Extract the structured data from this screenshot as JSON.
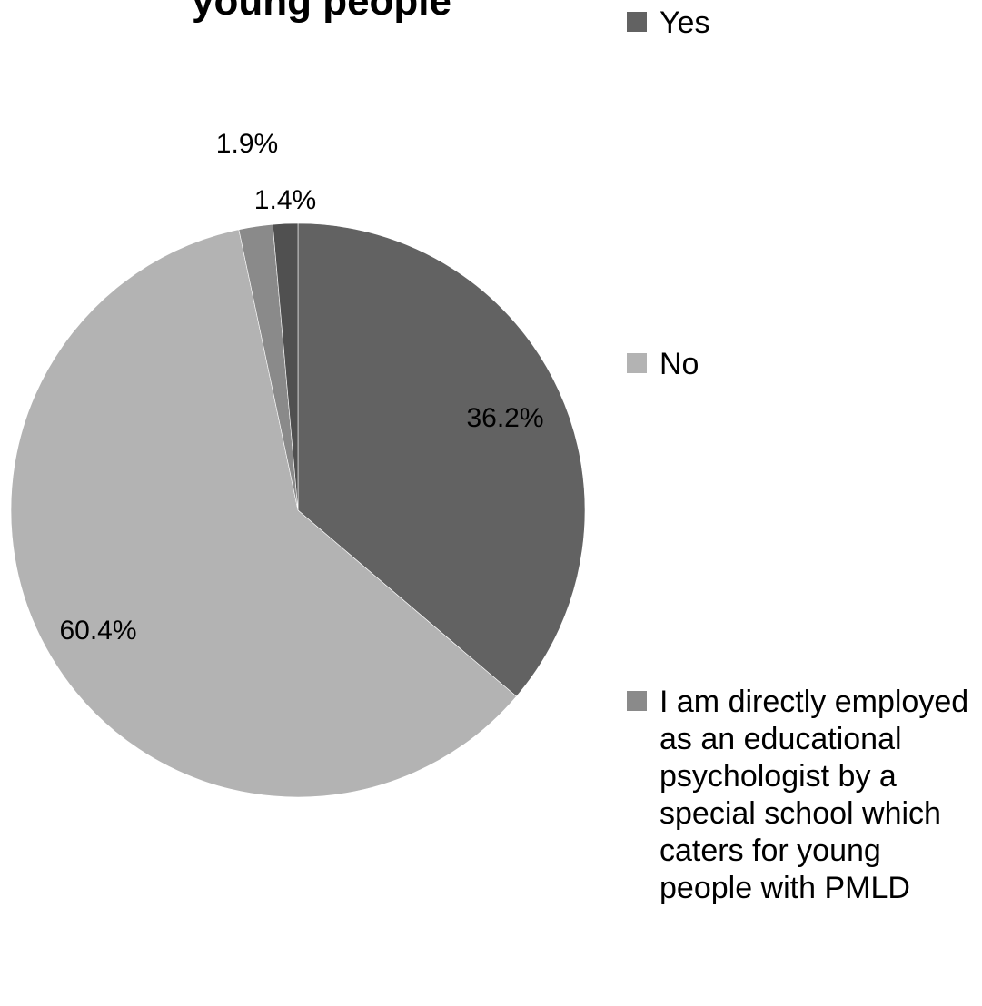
{
  "chart_data": {
    "type": "pie",
    "title": "young people",
    "start_angle_deg": 0,
    "direction": "clockwise",
    "series": [
      {
        "categories": [
          "Yes",
          "No",
          "I am directly employed as an educational psychologist by a special school which caters for young people with PMLD",
          ""
        ],
        "values": [
          36.2,
          60.4,
          1.9,
          1.4
        ],
        "value_labels": [
          "36.2%",
          "60.4%",
          "1.9%",
          "1.4%"
        ],
        "colors": [
          "#626262",
          "#b3b3b3",
          "#8a8a8a",
          "#505050"
        ]
      }
    ],
    "legend": {
      "position": "right",
      "entries": [
        {
          "label": "Yes",
          "color": "#626262"
        },
        {
          "label": "No",
          "color": "#b3b3b3"
        },
        {
          "label": "I am directly employed as an educational psychologist by a special school which caters for young people with PMLD",
          "color": "#8a8a8a"
        }
      ]
    }
  }
}
